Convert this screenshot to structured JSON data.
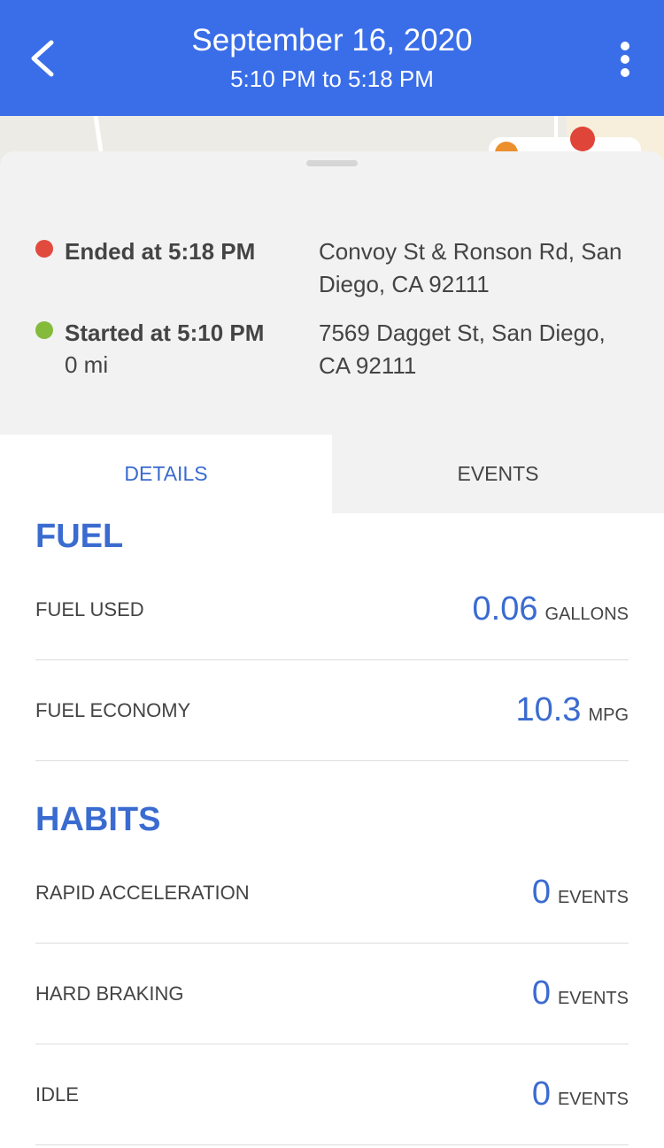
{
  "header": {
    "title": "September 16, 2020",
    "subtitle": "5:10 PM to 5:18 PM"
  },
  "trip": {
    "end": {
      "label": "Ended at 5:18 PM",
      "address": "Convoy St & Ronson Rd, San Diego, CA 92111"
    },
    "start": {
      "label": "Started at 5:10 PM",
      "distance": "0 mi",
      "address": "7569 Dagget St, San Diego, CA 92111"
    }
  },
  "tabs": [
    "DETAILS",
    "EVENTS"
  ],
  "sections": [
    {
      "title": "FUEL",
      "rows": [
        {
          "label": "FUEL USED",
          "value": "0.06",
          "unit": "GALLONS"
        },
        {
          "label": "FUEL ECONOMY",
          "value": "10.3",
          "unit": "MPG"
        }
      ]
    },
    {
      "title": "HABITS",
      "rows": [
        {
          "label": "RAPID ACCELERATION",
          "value": "0",
          "unit": "EVENTS"
        },
        {
          "label": "HARD BRAKING",
          "value": "0",
          "unit": "EVENTS"
        },
        {
          "label": "IDLE",
          "value": "0",
          "unit": "EVENTS"
        }
      ]
    }
  ]
}
